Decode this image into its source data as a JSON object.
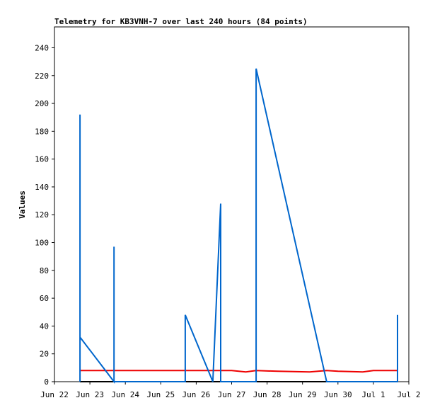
{
  "chart_data": {
    "type": "line",
    "title": "Telemetry for KB3VNH-7 over last 240 hours (84 points)",
    "y_label": "Values",
    "xlim": [
      0,
      10
    ],
    "xticks": [
      {
        "value": 0,
        "label": "Jun 22"
      },
      {
        "value": 1,
        "label": "Jun 23"
      },
      {
        "value": 2,
        "label": "Jun 24"
      },
      {
        "value": 3,
        "label": "Jun 25"
      },
      {
        "value": 4,
        "label": "Jun 26"
      },
      {
        "value": 5,
        "label": "Jun 27"
      },
      {
        "value": 6,
        "label": "Jun 28"
      },
      {
        "value": 7,
        "label": "Jun 29"
      },
      {
        "value": 8,
        "label": "Jun 30"
      },
      {
        "value": 9,
        "label": "Jul 1"
      },
      {
        "value": 10,
        "label": "Jul 2"
      }
    ],
    "ylim": [
      0,
      255
    ],
    "yticks": [
      0,
      20,
      40,
      60,
      80,
      100,
      120,
      140,
      160,
      180,
      200,
      220,
      240
    ],
    "series": [
      {
        "color": "#000000",
        "x": [
          0.72,
          9.68
        ],
        "values": [
          0,
          0
        ]
      },
      {
        "color": "#ee0000",
        "x": [
          0.72,
          5.0,
          5.4,
          5.69,
          6.3,
          7.2,
          7.68,
          8.0,
          8.7,
          9.0,
          9.68
        ],
        "values": [
          8,
          8,
          7,
          8,
          7.5,
          7,
          8,
          7.5,
          7,
          8,
          8
        ]
      },
      {
        "color": "#0066cc",
        "x": [
          0.72,
          0.72,
          0.72,
          1.68,
          1.68,
          1.68,
          3.69,
          3.69,
          4.47,
          4.69,
          4.69,
          5.69,
          5.69,
          7.68,
          9.68,
          9.68
        ],
        "values": [
          0,
          192,
          32,
          0,
          97,
          0,
          0,
          48,
          0,
          128,
          0,
          0,
          225,
          0,
          0,
          48
        ]
      }
    ]
  }
}
